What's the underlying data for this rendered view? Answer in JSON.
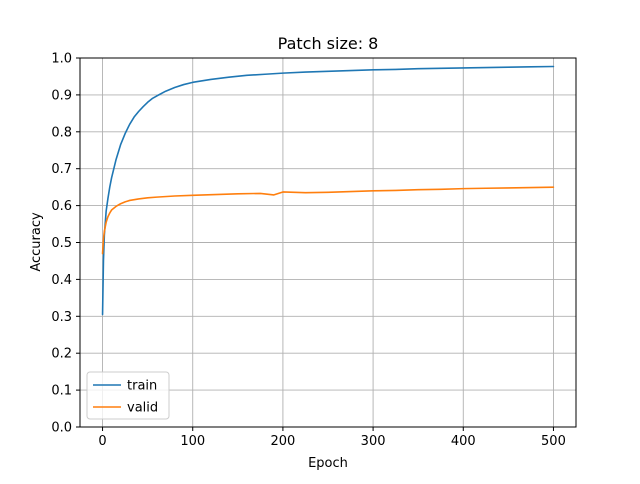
{
  "chart_data": {
    "type": "line",
    "title": "Patch size: 8",
    "xlabel": "Epoch",
    "ylabel": "Accuracy",
    "xlim": [
      -25,
      525
    ],
    "ylim": [
      0.0,
      1.0
    ],
    "xticks": [
      0,
      100,
      200,
      300,
      400,
      500
    ],
    "yticks": [
      0.0,
      0.1,
      0.2,
      0.3,
      0.4,
      0.5,
      0.6,
      0.7,
      0.8,
      0.9,
      1.0
    ],
    "xtick_labels": [
      "0",
      "100",
      "200",
      "300",
      "400",
      "500"
    ],
    "ytick_labels": [
      "0.0",
      "0.1",
      "0.2",
      "0.3",
      "0.4",
      "0.5",
      "0.6",
      "0.7",
      "0.8",
      "0.9",
      "1.0"
    ],
    "grid": true,
    "legend_position": "lower-left",
    "series": [
      {
        "name": "train",
        "color": "#1f77b4",
        "points": [
          [
            0,
            0.305
          ],
          [
            1,
            0.45
          ],
          [
            2,
            0.52
          ],
          [
            4,
            0.585
          ],
          [
            6,
            0.62
          ],
          [
            8,
            0.65
          ],
          [
            10,
            0.675
          ],
          [
            15,
            0.725
          ],
          [
            20,
            0.765
          ],
          [
            25,
            0.795
          ],
          [
            30,
            0.82
          ],
          [
            35,
            0.84
          ],
          [
            40,
            0.855
          ],
          [
            45,
            0.868
          ],
          [
            50,
            0.88
          ],
          [
            55,
            0.89
          ],
          [
            60,
            0.897
          ],
          [
            70,
            0.91
          ],
          [
            80,
            0.92
          ],
          [
            90,
            0.928
          ],
          [
            100,
            0.934
          ],
          [
            120,
            0.942
          ],
          [
            140,
            0.948
          ],
          [
            160,
            0.953
          ],
          [
            180,
            0.956
          ],
          [
            200,
            0.959
          ],
          [
            225,
            0.962
          ],
          [
            250,
            0.964
          ],
          [
            275,
            0.966
          ],
          [
            300,
            0.968
          ],
          [
            325,
            0.969
          ],
          [
            350,
            0.971
          ],
          [
            375,
            0.972
          ],
          [
            400,
            0.973
          ],
          [
            425,
            0.974
          ],
          [
            450,
            0.975
          ],
          [
            475,
            0.976
          ],
          [
            500,
            0.977
          ]
        ]
      },
      {
        "name": "valid",
        "color": "#ff7f0e",
        "points": [
          [
            0,
            0.47
          ],
          [
            1,
            0.51
          ],
          [
            2,
            0.53
          ],
          [
            4,
            0.555
          ],
          [
            6,
            0.57
          ],
          [
            8,
            0.58
          ],
          [
            10,
            0.588
          ],
          [
            15,
            0.598
          ],
          [
            20,
            0.605
          ],
          [
            25,
            0.61
          ],
          [
            30,
            0.614
          ],
          [
            40,
            0.618
          ],
          [
            50,
            0.621
          ],
          [
            60,
            0.623
          ],
          [
            80,
            0.626
          ],
          [
            100,
            0.628
          ],
          [
            125,
            0.63
          ],
          [
            150,
            0.632
          ],
          [
            175,
            0.633
          ],
          [
            190,
            0.629
          ],
          [
            200,
            0.637
          ],
          [
            225,
            0.635
          ],
          [
            250,
            0.636
          ],
          [
            275,
            0.638
          ],
          [
            300,
            0.64
          ],
          [
            325,
            0.641
          ],
          [
            350,
            0.643
          ],
          [
            375,
            0.644
          ],
          [
            400,
            0.646
          ],
          [
            425,
            0.647
          ],
          [
            450,
            0.648
          ],
          [
            475,
            0.649
          ],
          [
            500,
            0.65
          ]
        ]
      }
    ]
  }
}
